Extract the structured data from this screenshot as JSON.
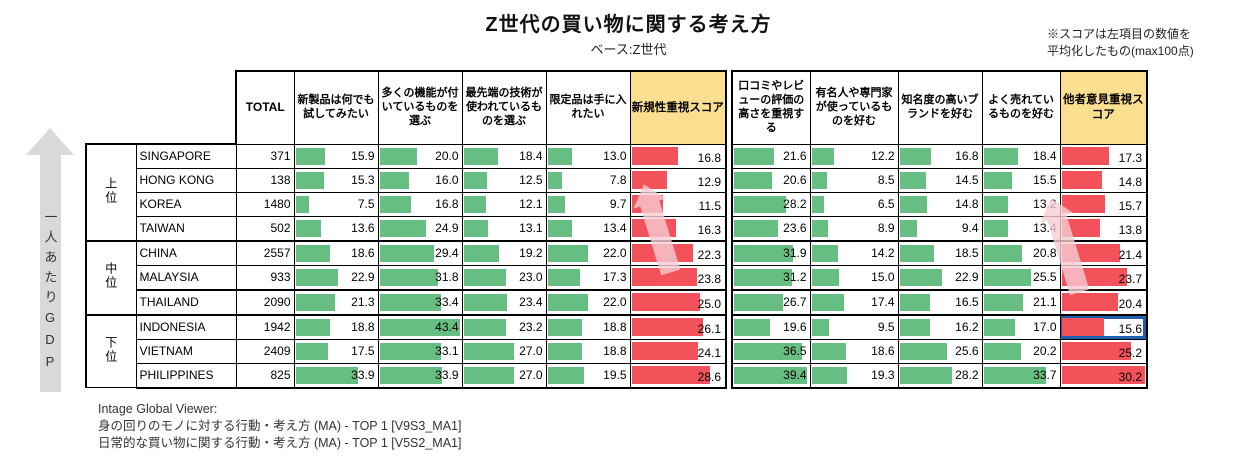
{
  "title": "Z世代の買い物に関する考え方",
  "subtitle": "ベース:Z世代",
  "note": {
    "line1": "※スコアは左項目の数値を",
    "line2": "平均化したもの(max100点)"
  },
  "gdp_axis_label": "一人あたりGDP",
  "footer": {
    "line1": "Intage Global Viewer:",
    "line2": "身の回りのモノに対する行動・考え方 (MA) - TOP 1 [V9S3_MA1]",
    "line3": "日常的な買い物に関する行動・考え方 (MA) - TOP 1 [V5S2_MA1]"
  },
  "colors": {
    "green_bar": "#66be83",
    "red_bar": "#f4525a",
    "score_header_bg": "#fbdf90",
    "highlight_border": "#1f5fae",
    "arrow_pink": "#f8ccd3",
    "gdp_arrow_gray": "#d9d9d9"
  },
  "chart_data": {
    "type": "table",
    "title": "Z世代の買い物に関する考え方",
    "base_note": "ベース:Z世代",
    "score_note": "※スコアは左項目の数値を平均化したもの(max100点)",
    "row_axis_label": "一人あたりGDP",
    "header": {
      "total": "TOTAL",
      "novelty_items": [
        "新製品は何でも試してみたい",
        "多くの機能が付いているものを選ぶ",
        "最先端の技術が使われているものを選ぶ",
        "限定品は手に入れたい"
      ],
      "novelty_score": "新規性重視スコア",
      "others_items": [
        "口コミやレビューの評価の高さを重視する",
        "有名人や専門家が使っているものを好む",
        "知名度の高いブランドを好む",
        "よく売れているものを好む"
      ],
      "others_score": "他者意見重視スコア"
    },
    "groups": [
      {
        "label": "上位",
        "countries": [
          "SINGAPORE",
          "HONG KONG",
          "KOREA",
          "TAIWAN"
        ]
      },
      {
        "label": "中位",
        "countries": [
          "CHINA",
          "MALAYSIA",
          "THAILAND"
        ]
      },
      {
        "label": "下位",
        "countries": [
          "INDONESIA",
          "VIETNAM",
          "PHILIPPINES"
        ]
      }
    ],
    "rows": [
      {
        "country": "SINGAPORE",
        "total": 371,
        "novelty": [
          15.9,
          20.0,
          18.4,
          13.0
        ],
        "novelty_score": 16.8,
        "others": [
          21.6,
          12.2,
          16.8,
          18.4
        ],
        "others_score": 17.3
      },
      {
        "country": "HONG KONG",
        "total": 138,
        "novelty": [
          15.3,
          16.0,
          12.5,
          7.8
        ],
        "novelty_score": 12.9,
        "others": [
          20.6,
          8.5,
          14.5,
          15.5
        ],
        "others_score": 14.8
      },
      {
        "country": "KOREA",
        "total": 1480,
        "novelty": [
          7.5,
          16.8,
          12.1,
          9.7
        ],
        "novelty_score": 11.5,
        "others": [
          28.2,
          6.5,
          14.8,
          13.2
        ],
        "others_score": 15.7
      },
      {
        "country": "TAIWAN",
        "total": 502,
        "novelty": [
          13.6,
          24.9,
          13.1,
          13.4
        ],
        "novelty_score": 16.3,
        "others": [
          23.6,
          8.9,
          9.4,
          13.4
        ],
        "others_score": 13.8
      },
      {
        "country": "CHINA",
        "total": 2557,
        "novelty": [
          18.6,
          29.4,
          19.2,
          22.0
        ],
        "novelty_score": 22.3,
        "others": [
          31.9,
          14.2,
          18.5,
          20.8
        ],
        "others_score": 21.4
      },
      {
        "country": "MALAYSIA",
        "total": 933,
        "novelty": [
          22.9,
          31.8,
          23.0,
          17.3
        ],
        "novelty_score": 23.8,
        "others": [
          31.2,
          15.0,
          22.9,
          25.5
        ],
        "others_score": 23.7
      },
      {
        "country": "THAILAND",
        "total": 2090,
        "novelty": [
          21.3,
          33.4,
          23.4,
          22.0
        ],
        "novelty_score": 25.0,
        "others": [
          26.7,
          17.4,
          16.5,
          21.1
        ],
        "others_score": 20.4
      },
      {
        "country": "INDONESIA",
        "total": 1942,
        "novelty": [
          18.8,
          43.4,
          23.2,
          18.8
        ],
        "novelty_score": 26.1,
        "others": [
          19.6,
          9.5,
          16.2,
          17.0
        ],
        "others_score": 15.6
      },
      {
        "country": "VIETNAM",
        "total": 2409,
        "novelty": [
          17.5,
          33.1,
          27.0,
          18.8
        ],
        "novelty_score": 24.1,
        "others": [
          36.5,
          18.6,
          25.6,
          20.2
        ],
        "others_score": 25.2
      },
      {
        "country": "PHILIPPINES",
        "total": 825,
        "novelty": [
          33.9,
          33.9,
          27.0,
          19.5
        ],
        "novelty_score": 28.6,
        "others": [
          39.4,
          19.3,
          28.2,
          33.7
        ],
        "others_score": 30.2
      }
    ],
    "extra_divider_above_country": "THAILAND",
    "highlighted_cell": {
      "country": "INDONESIA",
      "column": "others_score"
    },
    "trend_arrows": [
      {
        "column": "novelty_score",
        "direction": "up"
      },
      {
        "column": "others_score",
        "direction": "up"
      }
    ]
  }
}
